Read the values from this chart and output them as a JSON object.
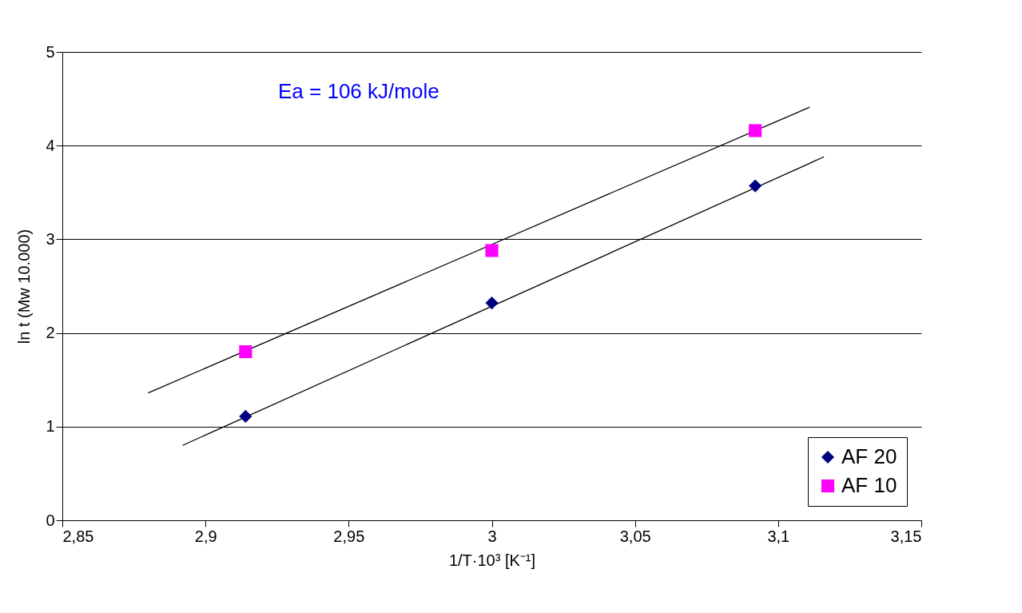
{
  "chart_data": {
    "type": "scatter",
    "xlabel": "1/T·10³ [K⁻¹]",
    "ylabel": "ln t (Mw 10.000)",
    "annotations": [
      "Ea = 106 kJ/mole"
    ],
    "series": [
      {
        "name": "AF 20",
        "color": "#000080",
        "marker": "diamond",
        "x": [
          2.914,
          3.0,
          3.092
        ],
        "values": [
          1.11,
          2.32,
          3.57
        ]
      },
      {
        "name": "AF 10",
        "color": "#ff00ff",
        "marker": "square",
        "x": [
          2.914,
          3.0,
          3.092
        ],
        "values": [
          1.8,
          2.88,
          4.16
        ]
      },
      {
        "type": "line",
        "color": "#000000",
        "x": [
          2.892,
          3.116
        ],
        "values": [
          0.8,
          3.88
        ]
      },
      {
        "type": "line",
        "color": "#000000",
        "x": [
          2.88,
          3.111
        ],
        "values": [
          1.36,
          4.41
        ]
      }
    ],
    "xlim": [
      2.85,
      3.15
    ],
    "xticks": [
      {
        "value": 2.85,
        "label": "2,85"
      },
      {
        "value": 2.9,
        "label": "2,9"
      },
      {
        "value": 2.95,
        "label": "2,95"
      },
      {
        "value": 3.0,
        "label": "3"
      },
      {
        "value": 3.05,
        "label": "3,05"
      },
      {
        "value": 3.1,
        "label": "3,1"
      },
      {
        "value": 3.15,
        "label": "3,15"
      }
    ],
    "ylim": [
      0,
      5
    ],
    "yticks": [
      0,
      1,
      2,
      3,
      4,
      5
    ],
    "grid": "y",
    "legend": "bottom right",
    "line_style": "solid"
  }
}
